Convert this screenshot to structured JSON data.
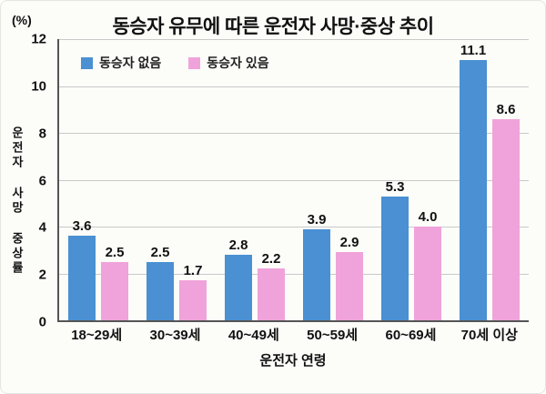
{
  "title": "동승자 유무에 따른 운전자 사망·중상 추이",
  "y_unit_label": "(%)",
  "y_axis_label": "운전자 사망 중상률",
  "x_axis_label": "운전자 연령",
  "legend": [
    {
      "label": "동승자 없음",
      "color": "#4a90d2"
    },
    {
      "label": "동승자 있음",
      "color": "#f0a3da"
    }
  ],
  "chart_data": {
    "type": "bar",
    "categories": [
      "18~29세",
      "30~39세",
      "40~49세",
      "50~59세",
      "60~69세",
      "70세 이상"
    ],
    "series": [
      {
        "name": "동승자 없음",
        "color": "#4a90d2",
        "values": [
          3.6,
          2.5,
          2.8,
          3.9,
          5.3,
          11.1
        ]
      },
      {
        "name": "동승자 있음",
        "color": "#f0a3da",
        "values": [
          2.5,
          1.7,
          2.2,
          2.9,
          4.0,
          8.6
        ]
      }
    ],
    "title": "동승자 유무에 따른 운전자 사망·중상 추이",
    "xlabel": "운전자 연령",
    "ylabel": "운전자 사망 중상률",
    "ylim": [
      0,
      12
    ],
    "yticks": [
      0,
      2,
      4,
      6,
      8,
      10,
      12
    ],
    "grid": true,
    "legend_position": "top-left"
  }
}
